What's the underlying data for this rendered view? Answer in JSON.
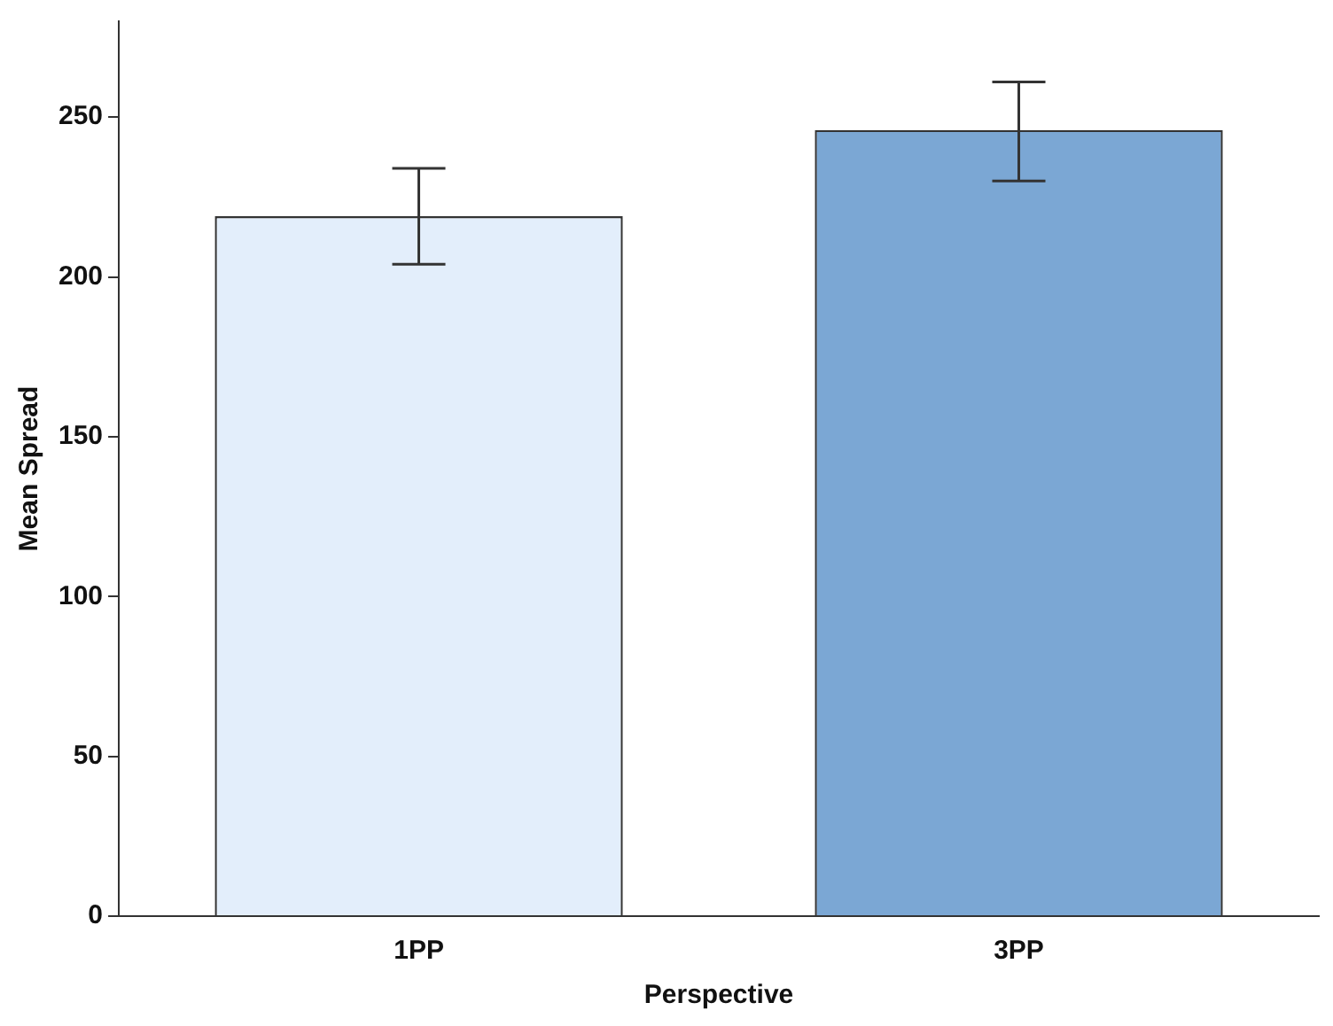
{
  "chart_data": {
    "type": "bar",
    "xlabel": "Perspective",
    "ylabel": "Mean Spread",
    "categories": [
      "1PP",
      "3PP"
    ],
    "values": [
      219,
      246
    ],
    "errors": [
      [
        204,
        234
      ],
      [
        230,
        261
      ]
    ],
    "colors": [
      "#e3eefb",
      "#7ba7d4"
    ],
    "ylim": [
      0,
      280
    ],
    "yticks": [
      0,
      50,
      100,
      150,
      200,
      250
    ],
    "grid": false,
    "legend": false
  }
}
